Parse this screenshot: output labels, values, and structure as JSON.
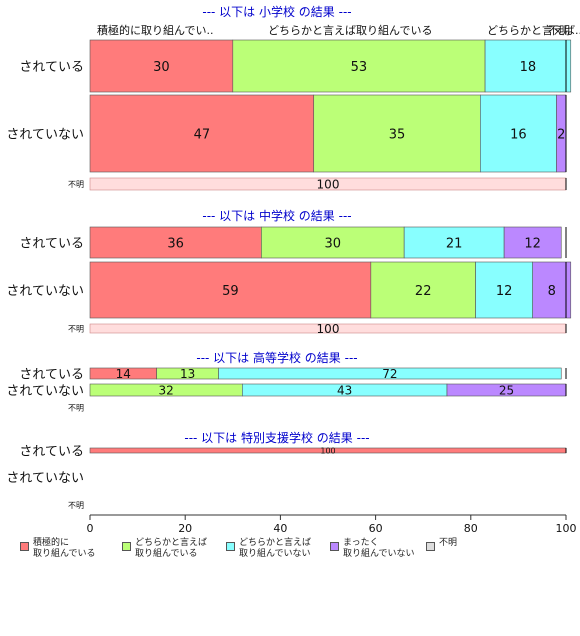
{
  "chart_data": {
    "type": "bar",
    "orientation": "horizontal",
    "stacked": true,
    "xlim": [
      0,
      100
    ],
    "x_ticks": [
      0,
      20,
      40,
      60,
      80,
      100
    ],
    "grid": false,
    "legend_placement": "bottom",
    "categories": [
      "積極的に\n取り組んでいる",
      "どちらかと言えば\n取り組んでいる",
      "どちらかと言えば\n取り組んでいない",
      "まったく\n取り組んでいない",
      "不明"
    ],
    "colors": [
      "#ff7b7b",
      "#bbff77",
      "#88ffff",
      "#bb88ff",
      "#dddddd"
    ],
    "header_labels": [
      "積極的に取り組んでい..",
      "どちらかと言えば取り組んでいる",
      "どちらかと言えば...",
      "不明"
    ],
    "groups": [
      {
        "title": "--- 以下は 小学校 の結果 ---",
        "rows": [
          {
            "label": "されている",
            "values": [
              30,
              53,
              18,
              0,
              0
            ]
          },
          {
            "label": "されていない",
            "values": [
              47,
              35,
              16,
              2,
              0
            ]
          },
          {
            "label": "不明",
            "values": [
              0,
              0,
              0,
              0,
              100
            ]
          }
        ]
      },
      {
        "title": "--- 以下は 中学校 の結果 ---",
        "rows": [
          {
            "label": "されている",
            "values": [
              36,
              30,
              21,
              12,
              0
            ]
          },
          {
            "label": "されていない",
            "values": [
              59,
              22,
              12,
              8,
              0
            ]
          },
          {
            "label": "不明",
            "values": [
              0,
              0,
              0,
              0,
              100
            ]
          }
        ]
      },
      {
        "title": "--- 以下は 高等学校 の結果 ---",
        "rows": [
          {
            "label": "されている",
            "values": [
              14,
              13,
              72,
              0,
              0
            ]
          },
          {
            "label": "されていない",
            "values": [
              0,
              32,
              43,
              25,
              0
            ]
          },
          {
            "label": "不明",
            "values": []
          }
        ]
      },
      {
        "title": "--- 以下は 特別支援学校 の結果 ---",
        "rows": [
          {
            "label": "されている",
            "values": [
              100,
              0,
              0,
              0,
              0
            ]
          },
          {
            "label": "されていない",
            "values": []
          },
          {
            "label": "不明",
            "values": []
          }
        ]
      }
    ]
  }
}
